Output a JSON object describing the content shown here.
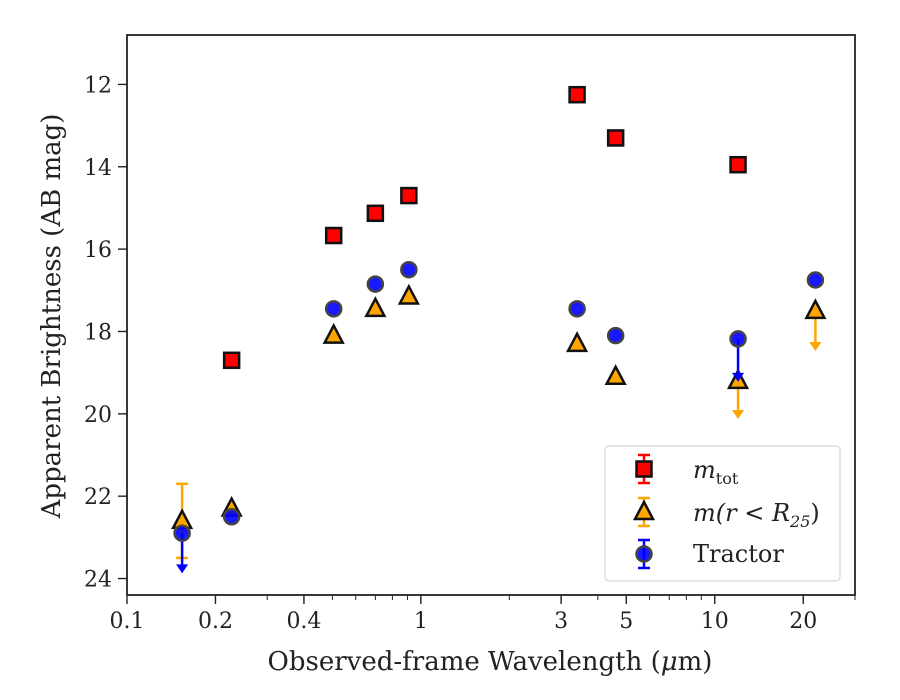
{
  "chart_data": {
    "type": "scatter",
    "xlabel_prefix": "Observed-frame Wavelength (",
    "xlabel_mu": "μ",
    "xlabel_suffix": "m)",
    "ylabel": "Apparent Brightness (AB mag)",
    "x_scale": "log",
    "xlim": [
      0.1,
      30
    ],
    "ylim": [
      24.4,
      10.8
    ],
    "y_inverted": true,
    "grid": false,
    "legend_position": "lower right",
    "x_ticks": [
      {
        "value": 0.1,
        "label": "0.1"
      },
      {
        "value": 0.2,
        "label": "0.2"
      },
      {
        "value": 0.4,
        "label": "0.4"
      },
      {
        "value": 1,
        "label": "1"
      },
      {
        "value": 3,
        "label": "3"
      },
      {
        "value": 5,
        "label": "5"
      },
      {
        "value": 10,
        "label": "10"
      },
      {
        "value": 20,
        "label": "20"
      }
    ],
    "y_ticks": [
      {
        "value": 12,
        "label": "12"
      },
      {
        "value": 14,
        "label": "14"
      },
      {
        "value": 16,
        "label": "16"
      },
      {
        "value": 18,
        "label": "18"
      },
      {
        "value": 20,
        "label": "20"
      },
      {
        "value": 22,
        "label": "22"
      },
      {
        "value": 24,
        "label": "24"
      }
    ],
    "series": [
      {
        "name": "m_tot",
        "legend_main": "m",
        "legend_sub": "tot",
        "marker": "square",
        "color": "#ff0000",
        "points": [
          {
            "x": 0.227,
            "y": 18.7
          },
          {
            "x": 0.505,
            "y": 15.67
          },
          {
            "x": 0.7,
            "y": 15.13
          },
          {
            "x": 0.91,
            "y": 14.7
          },
          {
            "x": 3.4,
            "y": 12.25
          },
          {
            "x": 4.6,
            "y": 13.3
          },
          {
            "x": 12.0,
            "y": 13.95
          }
        ]
      },
      {
        "name": "m(r < R_25)",
        "legend_main": "m(r < R",
        "legend_sub": "25",
        "legend_end": ")",
        "marker": "triangle",
        "color": "#ffa500",
        "points": [
          {
            "x": 0.154,
            "y": 22.6,
            "yerr_low": 21.7,
            "yerr_high": 23.5
          },
          {
            "x": 0.227,
            "y": 22.3
          },
          {
            "x": 0.505,
            "y": 18.1
          },
          {
            "x": 0.7,
            "y": 17.45
          },
          {
            "x": 0.91,
            "y": 17.15
          },
          {
            "x": 3.4,
            "y": 18.3
          },
          {
            "x": 4.6,
            "y": 19.1
          },
          {
            "x": 12.0,
            "y": 19.2,
            "limit_to": 20.1
          },
          {
            "x": 22.0,
            "y": 17.5,
            "limit_to": 18.45
          }
        ]
      },
      {
        "name": "Tractor",
        "legend_main": "Tractor",
        "marker": "circle",
        "color": "#0000ff",
        "points": [
          {
            "x": 0.154,
            "y": 22.9,
            "limit_to": 23.85
          },
          {
            "x": 0.227,
            "y": 22.5
          },
          {
            "x": 0.505,
            "y": 17.45
          },
          {
            "x": 0.7,
            "y": 16.85
          },
          {
            "x": 0.91,
            "y": 16.5
          },
          {
            "x": 3.4,
            "y": 17.45
          },
          {
            "x": 4.6,
            "y": 18.1
          },
          {
            "x": 12.0,
            "y": 18.18,
            "limit_to": 19.2
          },
          {
            "x": 22.0,
            "y": 16.75
          }
        ]
      }
    ]
  }
}
